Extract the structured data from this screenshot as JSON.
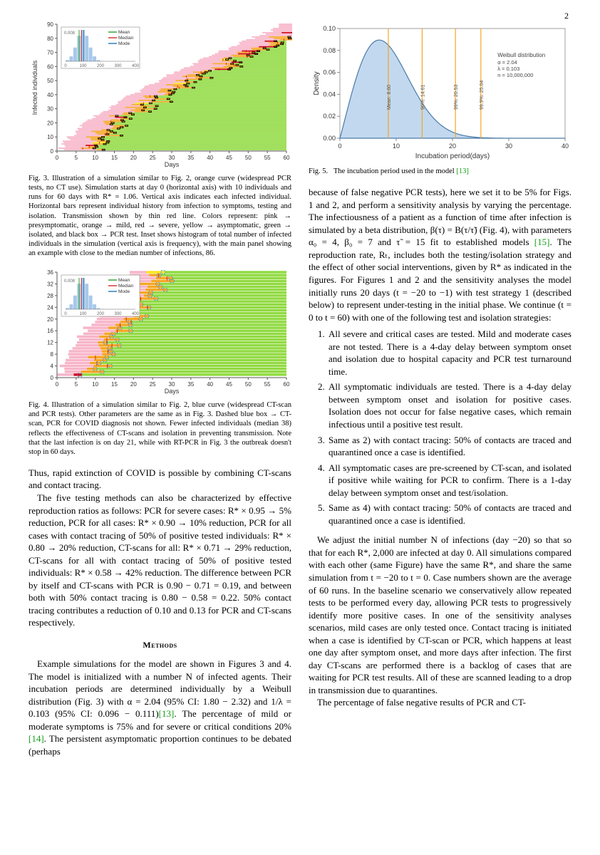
{
  "page_number": "2",
  "colors": {
    "text": "#000000",
    "ref_link": "#18a018",
    "fig3_bg": "#ffffff",
    "fig3_pink": "#f7b5c9",
    "fig3_orange": "#f5a623",
    "fig3_red": "#d0021b",
    "fig3_green": "#7ed321",
    "fig3_yellow": "#f8e71c",
    "fig3_mean": "#2ca02c",
    "fig3_median": "#d62728",
    "fig3_mode": "#1f77b4",
    "fig3_histfill": "#a8c8e8",
    "fig4_bluedash": "#3498db",
    "fig5_fill": "#a8c8e8",
    "fig5_line": "#4a7ba8",
    "fig5_orange": "#f5a623",
    "fig5_axis": "#888888",
    "fig5_bg": "#ffffff"
  },
  "fig3": {
    "caption": "Fig. 3.   Illustration of a simulation similar to Fig. 2, orange curve (widespread PCR tests, no CT use). Simulation starts at day 0 (horizontal axis) with 10 individuals and runs for 60 days with R* = 1.06. Vertical axis indicates each infected individual. Horizontal bars represent individual history from infection to symptoms, testing and isolation. Transmission shown by thin red line. Colors represent: pink → presymptomatic, orange → mild, red → severe, yellow → asymptomatic, green → isolated, and black box → PCR test. Inset shows histogram of total number of infected individuals in the simulation (vertical axis is frequency), with the main panel showing an example with close to the median number of infections, 86.",
    "xlabel": "Days",
    "ylabel": "Infected individuals",
    "x_range": [
      0,
      60
    ],
    "x_step": 5,
    "y_range": [
      0,
      90
    ],
    "y_step": 10,
    "inset": {
      "legend": [
        "Mean",
        "Median",
        "Mode"
      ],
      "x_range": [
        0,
        400
      ],
      "x_step": 100,
      "y_max": 0.008
    }
  },
  "fig4": {
    "caption": "Fig. 4.   Illustration of a simulation similar to Fig. 2, blue curve (widespread CT-scan and PCR tests). Other parameters are the same as in Fig. 3. Dashed blue box → CT-scan, PCR for COVID diagnosis not shown. Fewer infected individuals (median 38) reflects the effectiveness of CT-scans and isolation in preventing transmission. Note that the last infection is on day 21, while with RT-PCR in Fig. 3 the outbreak doesn't stop in 60 days.",
    "xlabel": "Days",
    "ylabel": "",
    "x_range": [
      0,
      60
    ],
    "x_step": 5,
    "y_range": [
      0,
      36
    ],
    "y_step": 4,
    "inset": {
      "legend": [
        "Mean",
        "Median",
        "Mode"
      ]
    }
  },
  "fig5": {
    "caption": "Fig. 5.   The incubation period used in the model [13]",
    "xlabel": "Incubation period(days)",
    "ylabel": "Density",
    "x_range": [
      0,
      40
    ],
    "x_step": 10,
    "y_range": [
      0,
      0.1
    ],
    "y_step": 0.02,
    "vlines": [
      {
        "x": 8.6,
        "label": "Mean: 8.60"
      },
      {
        "x": 14.61,
        "label": "90%: 14.61"
      },
      {
        "x": 20.53,
        "label": "99%: 20.53"
      },
      {
        "x": 25.04,
        "label": "99.9%: 25.04"
      }
    ],
    "annotation": {
      "title": "Weibull distribution",
      "lines": [
        "α = 2.04",
        "λ = 0.103",
        "n = 10,000,000"
      ]
    },
    "weibull": {
      "alpha": 2.04,
      "lambda": 0.103,
      "peak_y": 0.088
    }
  },
  "left_col": {
    "para1": "Thus, rapid extinction of COVID is possible by combining CT-scans and contact tracing.",
    "para2": "The five testing methods can also be characterized by effective reproduction ratios as follows: PCR for severe cases: R* × 0.95 → 5% reduction, PCR for all cases: R* × 0.90 → 10% reduction, PCR for all cases with contact tracing of 50% of positive tested individuals: R* × 0.80 → 20% reduction, CT-scans for all: R* × 0.71 → 29% reduction, CT-scans for all with contact tracing of 50% of positive tested individuals: R* × 0.58 → 42% reduction. The difference between PCR by itself and CT-scans with PCR is 0.90 − 0.71 = 0.19, and between both with 50% contact tracing is 0.80 − 0.58 = 0.22. 50% contact tracing contributes a reduction of 0.10 and 0.13 for PCR and CT-scans respectively.",
    "methods_heading": "Methods",
    "para3_a": "Example simulations for the model are shown in Figures 3 and 4. The model is initialized with a number N of infected agents. Their incubation periods are determined individually by a Weibull distribution (Fig. 3) with α = 2.04 (95% CI: 1.80 − 2.32) and 1/λ = 0.103 (95% CI: 0.096 − 0.111)",
    "ref13": "[13]",
    "para3_b": ". The percentage of mild or moderate symptoms is 75% and for severe or critical conditions 20% ",
    "ref14": "[14]",
    "para3_c": ". The persistent asymptomatic proportion continues to be debated (perhaps"
  },
  "right_col": {
    "para1_a": "because of false negative PCR tests), here we set it to be 5% for Figs. 1 and 2, and perform a sensitivity analysis by varying the percentage. The infectiousness of a patient as a function of time after infection is simulated by a beta distribution, β(τ) = B(τ/τ̃) (Fig. 4), with parameters α₀ = 4, β₀ = 7 and τ̃ = 15 fit to established models ",
    "ref15": "[15]",
    "para1_b": ". The reproduction rate, Rₜ, includes both the testing/isolation strategy and the effect of other social interventions, given by R* as indicated in the figures. For Figures 1 and 2 and the sensitivity analyses the model initially runs 20 days (t = −20 to −1) with test strategy 1 (described below) to represent under-testing in the initial phase. We continue (t = 0 to t = 60) with one of the following test and isolation strategies:",
    "strategies": [
      "All severe and critical cases are tested. Mild and moderate cases are not tested. There is a 4-day delay between symptom onset and isolation due to hospital capacity and PCR test turnaround time.",
      "All symptomatic individuals are tested. There is a 4-day delay between symptom onset and isolation for positive cases. Isolation does not occur for false negative cases, which remain infectious until a positive test result.",
      "Same as 2) with contact tracing: 50% of contacts are traced and quarantined once a case is identified.",
      "All symptomatic cases are pre-screened by CT-scan, and isolated if positive while waiting for PCR to confirm. There is a 1-day delay between symptom onset and test/isolation.",
      "Same as 4) with contact tracing: 50% of contacts are traced and quarantined once a case is identified."
    ],
    "para2": "We adjust the initial number N of infections (day −20) so that so that for each R*, 2,000 are infected at day 0. All simulations compared with each other (same Figure) have the same R*, and share the same simulation from t = −20 to t = 0. Case numbers shown are the average of 60 runs. In the baseline scenario we conservatively allow repeated tests to be performed every day, allowing PCR tests to progressively identify more positive cases. In one of the sensitivity analyses scenarios, mild cases are only tested once. Contact tracing is initiated when a case is identified by CT-scan or PCR, which happens at least one day after symptom onset, and more days after infection. The first day CT-scans are performed there is a backlog of cases that are waiting for PCR test results. All of these are scanned leading to a drop in transmission due to quarantines.",
    "para3": "The percentage of false negative results of PCR and CT-"
  }
}
